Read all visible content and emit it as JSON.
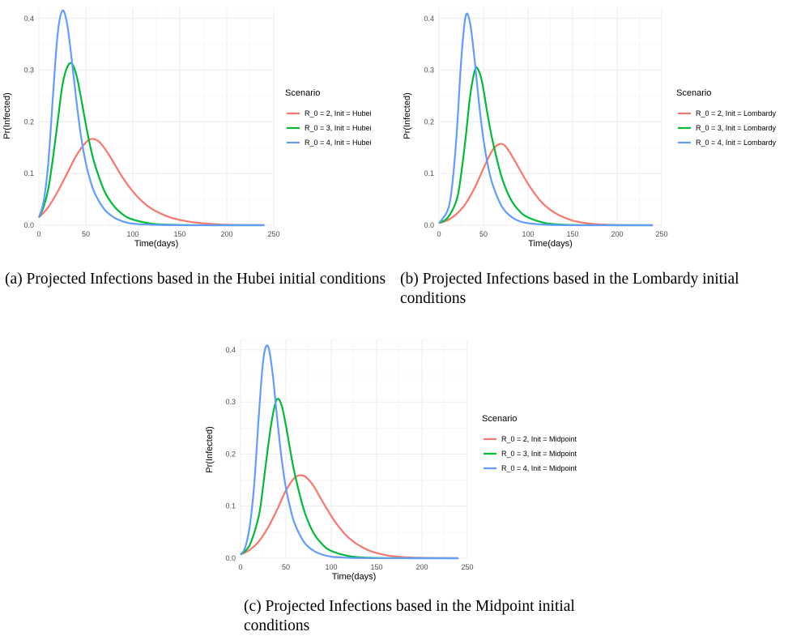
{
  "chart_data": [
    {
      "type": "line",
      "xlabel": "Time(days)",
      "ylabel": "Pr(Infected)",
      "xlim": [
        0,
        250
      ],
      "ylim": [
        0,
        0.42
      ],
      "x_ticks": [
        "0",
        "50",
        "100",
        "150",
        "200",
        "250"
      ],
      "y_ticks": [
        "0.0",
        "0.1",
        "0.2",
        "0.3",
        "0.4"
      ],
      "grid": true,
      "legend_title": "Scenario",
      "legend_position": "right",
      "series": [
        {
          "name": "R_0 = 2, Init = Hubei",
          "color": "#F8766D",
          "x": [
            0,
            10,
            20,
            30,
            40,
            50,
            57,
            65,
            75,
            90,
            105,
            120,
            140,
            160,
            180,
            200,
            220,
            240
          ],
          "values": [
            0.015,
            0.035,
            0.065,
            0.1,
            0.135,
            0.16,
            0.167,
            0.16,
            0.135,
            0.09,
            0.055,
            0.032,
            0.015,
            0.007,
            0.003,
            0.001,
            0.0005,
            0.0002
          ]
        },
        {
          "name": "R_0 = 3, Init = Hubei",
          "color": "#00BA38",
          "x": [
            0,
            5,
            10,
            15,
            20,
            25,
            30,
            35,
            40,
            45,
            50,
            55,
            60,
            70,
            80,
            90,
            100,
            120,
            140,
            160,
            180,
            200,
            240
          ],
          "values": [
            0.015,
            0.035,
            0.07,
            0.13,
            0.2,
            0.27,
            0.305,
            0.313,
            0.29,
            0.245,
            0.195,
            0.15,
            0.115,
            0.065,
            0.037,
            0.02,
            0.011,
            0.003,
            0.001,
            0.0003,
            0.0001,
            0,
            0
          ]
        },
        {
          "name": "R_0 = 4, Init = Hubei",
          "color": "#619CFF",
          "x": [
            0,
            5,
            10,
            15,
            20,
            25,
            30,
            35,
            40,
            45,
            50,
            55,
            60,
            70,
            80,
            90,
            100,
            120,
            140,
            160,
            200,
            240
          ],
          "values": [
            0.015,
            0.045,
            0.12,
            0.25,
            0.37,
            0.415,
            0.39,
            0.32,
            0.24,
            0.17,
            0.12,
            0.085,
            0.06,
            0.03,
            0.015,
            0.007,
            0.003,
            0.001,
            0.0002,
            0,
            0,
            0
          ]
        }
      ]
    },
    {
      "type": "line",
      "xlabel": "Time(days)",
      "ylabel": "Pr(Infected)",
      "xlim": [
        0,
        250
      ],
      "ylim": [
        0,
        0.42
      ],
      "x_ticks": [
        "0",
        "50",
        "100",
        "150",
        "200",
        "250"
      ],
      "y_ticks": [
        "0.0",
        "0.1",
        "0.2",
        "0.3",
        "0.4"
      ],
      "grid": true,
      "legend_title": "Scenario",
      "legend_position": "right",
      "series": [
        {
          "name": "R_0 = 2, Init = Lombardy",
          "color": "#F8766D",
          "x": [
            0,
            10,
            20,
            30,
            40,
            50,
            60,
            68,
            75,
            85,
            100,
            115,
            130,
            150,
            170,
            190,
            210,
            240
          ],
          "values": [
            0.004,
            0.01,
            0.022,
            0.042,
            0.072,
            0.11,
            0.145,
            0.157,
            0.152,
            0.125,
            0.08,
            0.045,
            0.024,
            0.009,
            0.003,
            0.001,
            0.0003,
            0
          ]
        },
        {
          "name": "R_0 = 3, Init = Lombardy",
          "color": "#00BA38",
          "x": [
            0,
            10,
            20,
            25,
            30,
            35,
            40,
            43,
            48,
            55,
            60,
            70,
            80,
            90,
            100,
            120,
            140,
            160,
            200,
            240
          ],
          "values": [
            0.004,
            0.015,
            0.05,
            0.1,
            0.17,
            0.25,
            0.298,
            0.304,
            0.28,
            0.21,
            0.165,
            0.095,
            0.052,
            0.028,
            0.015,
            0.004,
            0.001,
            0.0003,
            0,
            0
          ]
        },
        {
          "name": "R_0 = 4, Init = Lombardy",
          "color": "#619CFF",
          "x": [
            0,
            10,
            15,
            20,
            25,
            30,
            35,
            40,
            45,
            50,
            55,
            60,
            70,
            80,
            90,
            100,
            120,
            140,
            160,
            200,
            240
          ],
          "values": [
            0.004,
            0.03,
            0.08,
            0.18,
            0.32,
            0.405,
            0.39,
            0.32,
            0.235,
            0.165,
            0.115,
            0.08,
            0.038,
            0.018,
            0.008,
            0.004,
            0.001,
            0.0002,
            0,
            0,
            0
          ]
        }
      ]
    },
    {
      "type": "line",
      "xlabel": "Time(days)",
      "ylabel": "Pr(Infected)",
      "xlim": [
        0,
        250
      ],
      "ylim": [
        0,
        0.42
      ],
      "x_ticks": [
        "0",
        "50",
        "100",
        "150",
        "200",
        "250"
      ],
      "y_ticks": [
        "0.0",
        "0.1",
        "0.2",
        "0.3",
        "0.4"
      ],
      "grid": true,
      "legend_title": "Scenario",
      "legend_position": "right",
      "series": [
        {
          "name": "R_0 = 2, Init = Midpoint",
          "color": "#F8766D",
          "x": [
            0,
            10,
            20,
            30,
            40,
            50,
            60,
            70,
            80,
            90,
            105,
            120,
            140,
            160,
            180,
            200,
            220,
            240
          ],
          "values": [
            0.007,
            0.016,
            0.032,
            0.058,
            0.092,
            0.13,
            0.155,
            0.158,
            0.14,
            0.11,
            0.068,
            0.038,
            0.016,
            0.006,
            0.002,
            0.0008,
            0.0003,
            0
          ]
        },
        {
          "name": "R_0 = 3, Init = Midpoint",
          "color": "#00BA38",
          "x": [
            0,
            10,
            20,
            25,
            30,
            35,
            40,
            45,
            50,
            55,
            60,
            70,
            80,
            90,
            100,
            120,
            140,
            160,
            200,
            240
          ],
          "values": [
            0.007,
            0.025,
            0.08,
            0.14,
            0.21,
            0.27,
            0.305,
            0.295,
            0.255,
            0.205,
            0.16,
            0.092,
            0.05,
            0.027,
            0.014,
            0.004,
            0.001,
            0.0003,
            0,
            0
          ]
        },
        {
          "name": "R_0 = 4, Init = Midpoint",
          "color": "#619CFF",
          "x": [
            0,
            5,
            10,
            15,
            20,
            25,
            30,
            35,
            40,
            45,
            50,
            55,
            60,
            70,
            80,
            90,
            100,
            120,
            140,
            160,
            200,
            240
          ],
          "values": [
            0.007,
            0.02,
            0.06,
            0.14,
            0.27,
            0.38,
            0.408,
            0.36,
            0.275,
            0.195,
            0.135,
            0.095,
            0.065,
            0.031,
            0.015,
            0.007,
            0.003,
            0.0008,
            0.0002,
            0,
            0,
            0
          ]
        }
      ]
    }
  ],
  "captions": [
    {
      "text": "(a) Projected Infections based in the Hubei initial conditions"
    },
    {
      "text": "(b) Projected Infections based in the Lombardy initial conditions"
    },
    {
      "text": "(c) Projected Infections based in the Midpoint initial conditions"
    }
  ]
}
